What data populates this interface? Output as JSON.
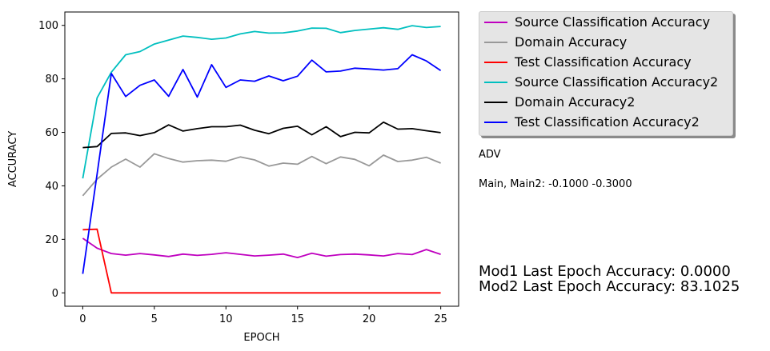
{
  "chart_data": {
    "type": "line",
    "xlabel": "EPOCH",
    "ylabel": "ACCURACY",
    "xlim": [
      -1.25,
      26.25
    ],
    "ylim": [
      -5,
      105
    ],
    "xticks": [
      0,
      5,
      10,
      15,
      20,
      25
    ],
    "yticks": [
      0,
      20,
      40,
      60,
      80,
      100
    ],
    "grid": false,
    "legend_placement": "outside-right-top",
    "x": [
      0,
      1,
      2,
      3,
      4,
      5,
      6,
      7,
      8,
      9,
      10,
      11,
      12,
      13,
      14,
      15,
      16,
      17,
      18,
      19,
      20,
      21,
      22,
      23,
      24,
      25
    ],
    "series": [
      {
        "name": "Source Classification Accuracy",
        "color": "#bf00bf",
        "values": [
          20.4,
          16.7,
          14.7,
          14.1,
          14.7,
          14.2,
          13.6,
          14.5,
          14.0,
          14.4,
          15.0,
          14.4,
          13.8,
          14.1,
          14.5,
          13.2,
          14.8,
          13.7,
          14.3,
          14.5,
          14.2,
          13.8,
          14.7,
          14.3,
          16.2,
          14.4
        ]
      },
      {
        "name": "Domain Accuracy",
        "color": "#999999",
        "values": [
          36.3,
          42.5,
          47.0,
          50.0,
          47.0,
          52.0,
          50.2,
          48.9,
          49.4,
          49.6,
          49.2,
          50.8,
          49.7,
          47.4,
          48.5,
          48.1,
          51.0,
          48.3,
          50.8,
          49.9,
          47.5,
          51.5,
          49.1,
          49.6,
          50.7,
          48.5
        ]
      },
      {
        "name": "Test Classification Accuracy",
        "color": "#ff0000",
        "values": [
          23.6,
          23.8,
          0,
          0,
          0,
          0,
          0,
          0,
          0,
          0,
          0,
          0,
          0,
          0,
          0,
          0,
          0,
          0,
          0,
          0,
          0,
          0,
          0,
          0,
          0,
          0
        ]
      },
      {
        "name": "Source Classification Accuracy2",
        "color": "#00bfbf",
        "values": [
          42.8,
          72.9,
          82.5,
          89.0,
          90.2,
          93.0,
          94.5,
          96.0,
          95.5,
          94.8,
          95.3,
          96.8,
          97.7,
          97.1,
          97.2,
          97.9,
          99.0,
          98.9,
          97.3,
          98.1,
          98.6,
          99.1,
          98.5,
          99.9,
          99.2,
          99.6
        ]
      },
      {
        "name": "Domain Accuracy2",
        "color": "#000000",
        "values": [
          54.3,
          54.7,
          59.6,
          59.8,
          58.8,
          59.9,
          62.8,
          60.5,
          61.4,
          62.1,
          62.1,
          62.7,
          60.8,
          59.5,
          61.5,
          62.3,
          59.1,
          62.1,
          58.4,
          60.0,
          59.8,
          63.8,
          61.2,
          61.4,
          60.6,
          59.9
        ]
      },
      {
        "name": "Test Classification Accuracy2",
        "color": "#0000ff",
        "values": [
          7.1,
          44.4,
          82.0,
          73.4,
          77.6,
          79.6,
          73.5,
          83.5,
          73.2,
          85.3,
          76.8,
          79.6,
          79.1,
          81.1,
          79.3,
          81.0,
          87.0,
          82.6,
          82.9,
          84.0,
          83.7,
          83.3,
          83.8,
          89.0,
          86.7,
          83.1
        ]
      }
    ]
  },
  "notes": {
    "adv": "ADV",
    "main": "Main, Main2: -0.1000 -0.3000",
    "mod1": "Mod1 Last Epoch Accuracy: 0.0000",
    "mod2": "Mod2 Last Epoch Accuracy: 83.1025"
  }
}
